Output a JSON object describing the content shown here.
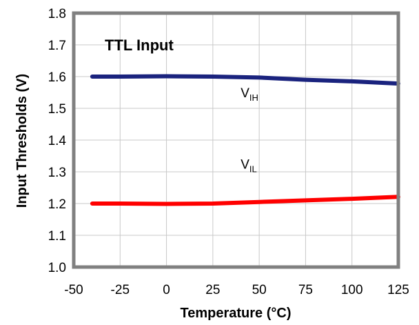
{
  "chart_data": {
    "type": "line",
    "title": "TTL Input",
    "xlabel": "Temperature (°C)",
    "ylabel": "Input Thresholds (V)",
    "xlim": [
      -50,
      125
    ],
    "ylim": [
      1.0,
      1.8
    ],
    "x_ticks": [
      -50,
      -25,
      0,
      25,
      50,
      75,
      100,
      125
    ],
    "y_ticks": [
      1.0,
      1.1,
      1.2,
      1.3,
      1.4,
      1.5,
      1.6,
      1.7,
      1.8
    ],
    "x_tick_labels": [
      "-50",
      "-25",
      "0",
      "25",
      "50",
      "75",
      "100",
      "125"
    ],
    "y_tick_labels": [
      "1.0",
      "1.1",
      "1.2",
      "1.3",
      "1.4",
      "1.5",
      "1.6",
      "1.7",
      "1.8"
    ],
    "grid": true,
    "legend": "none",
    "series": [
      {
        "label_main": "V",
        "label_sub": "IH",
        "color": "#1a237e",
        "label_at": [
          40,
          1.535
        ],
        "x": [
          -40,
          -25,
          0,
          25,
          50,
          75,
          100,
          125
        ],
        "values": [
          1.6,
          1.6,
          1.601,
          1.6,
          1.597,
          1.59,
          1.585,
          1.578
        ]
      },
      {
        "label_main": "V",
        "label_sub": "IL",
        "color": "#ff0000",
        "label_at": [
          40,
          1.31
        ],
        "x": [
          -40,
          -25,
          0,
          25,
          50,
          75,
          100,
          125
        ],
        "values": [
          1.2,
          1.2,
          1.199,
          1.2,
          1.205,
          1.21,
          1.215,
          1.221
        ]
      }
    ]
  }
}
